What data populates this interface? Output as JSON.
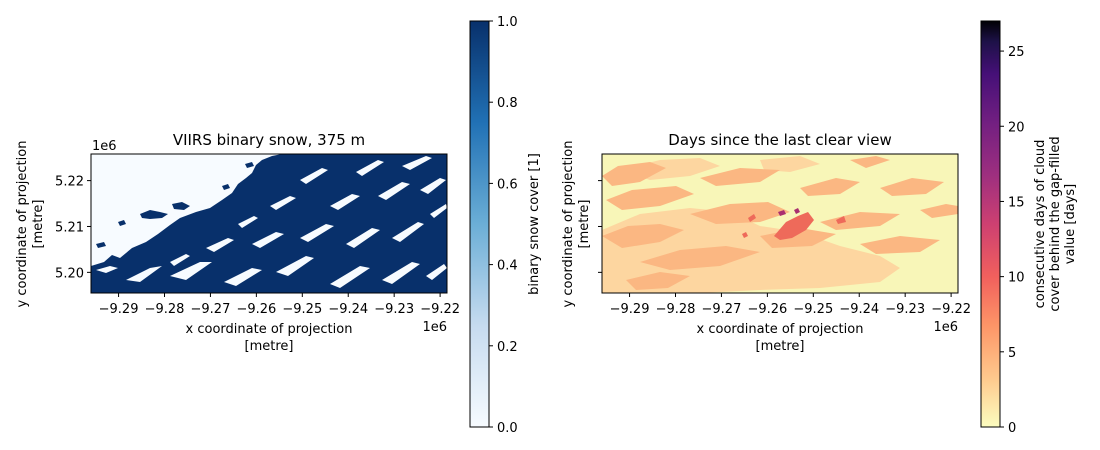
{
  "chart_data": [
    {
      "type": "heatmap",
      "title": "VIIRS binary snow, 375 m",
      "xlabel": [
        "x coordinate of projection",
        "[metre]"
      ],
      "ylabel": [
        "y coordinate of projection",
        "[metre]"
      ],
      "x_ticks": [
        -9.29,
        -9.28,
        -9.27,
        -9.26,
        -9.25,
        -9.24,
        -9.23,
        -9.22
      ],
      "x_tick_labels": [
        "−9.29",
        "−9.28",
        "−9.27",
        "−9.26",
        "−9.25",
        "−9.24",
        "−9.23",
        "−9.22"
      ],
      "x_offset": "1e6",
      "xlim": [
        -9.296,
        -9.2185
      ],
      "y_ticks": [
        5.2,
        5.21,
        5.22
      ],
      "y_tick_labels": [
        "5.20",
        "5.21",
        "5.22"
      ],
      "y_offset": "1e6",
      "ylim": [
        5.1955,
        5.2258
      ],
      "colormap": "Blues",
      "colors": [
        "#f7fbff",
        "#08306b"
      ],
      "colorbar": {
        "label": "binary snow cover [1]",
        "range": [
          0,
          1
        ],
        "ticks": [
          0,
          0.2,
          0.4,
          0.6,
          0.8,
          1
        ],
        "tick_labels": [
          "0.0",
          "0.2",
          "0.4",
          "0.6",
          "0.8",
          "1.0"
        ]
      },
      "grid": false
    },
    {
      "type": "heatmap",
      "title": "Days since the last clear view",
      "xlabel": [
        "x coordinate of projection",
        "[metre]"
      ],
      "ylabel": [
        "y coordinate of projection",
        "[metre]"
      ],
      "x_ticks": [
        -9.29,
        -9.28,
        -9.27,
        -9.26,
        -9.25,
        -9.24,
        -9.23,
        -9.22
      ],
      "x_tick_labels": [
        "−9.29",
        "−9.28",
        "−9.27",
        "−9.26",
        "−9.25",
        "−9.24",
        "−9.23",
        "−9.22"
      ],
      "x_offset": "1e6",
      "xlim": [
        -9.296,
        -9.2185
      ],
      "y_ticks": [
        5.2,
        5.21,
        5.22
      ],
      "y_tick_labels": [
        "",
        "",
        ""
      ],
      "ylim": [
        5.1955,
        5.2258
      ],
      "colormap": "magma_r",
      "colors": [
        "#fcfdbf",
        "#fec98d",
        "#fd9567",
        "#f1605d",
        "#cd4071",
        "#9e2f7f",
        "#721f81",
        "#451077",
        "#1d1147",
        "#000004"
      ],
      "colorbar": {
        "label": [
          "consecutive days of cloud",
          "cover behind the gap-filled",
          "value [days]"
        ],
        "range": [
          0,
          27
        ],
        "ticks": [
          0,
          5,
          10,
          15,
          20,
          25
        ],
        "tick_labels": [
          "0",
          "5",
          "10",
          "15",
          "20",
          "25"
        ]
      },
      "grid": false
    }
  ]
}
